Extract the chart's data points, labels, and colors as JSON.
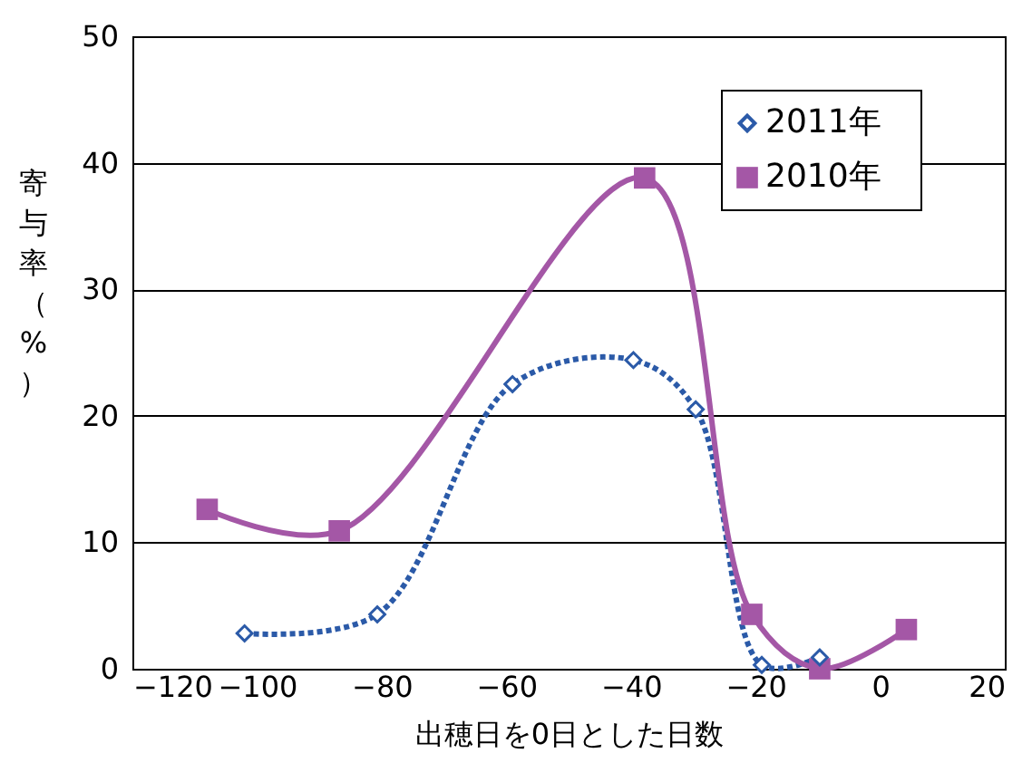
{
  "chart_data": {
    "type": "line",
    "xlabel": "出穂日を0日とした日数",
    "ylabel": "寄与率（%）",
    "xlim": [
      -120,
      20
    ],
    "xticks": [
      -120,
      -100,
      -80,
      -60,
      -40,
      -20,
      0,
      20
    ],
    "ylim": [
      0,
      50
    ],
    "yticks": [
      0,
      10,
      20,
      30,
      40,
      50
    ],
    "grid": "y",
    "legend": "top right",
    "series": [
      {
        "name": "2011年",
        "color": "#2b5aa8",
        "marker": "diamond",
        "line_style": "dotted",
        "x": [
          -102,
          -80.7,
          -59,
          -39.6,
          -29.6,
          -19,
          -9.7
        ],
        "values": [
          2.8,
          4.3,
          22.5,
          24.4,
          20.5,
          0.3,
          0.9
        ]
      },
      {
        "name": "2010年",
        "color": "#a457a6",
        "marker": "square",
        "line_style": "solid",
        "x": [
          -108,
          -86.8,
          -37.8,
          -20.6,
          -9.7,
          4.2
        ],
        "values": [
          12.6,
          10.9,
          38.8,
          4.3,
          0,
          3.1
        ]
      }
    ]
  }
}
